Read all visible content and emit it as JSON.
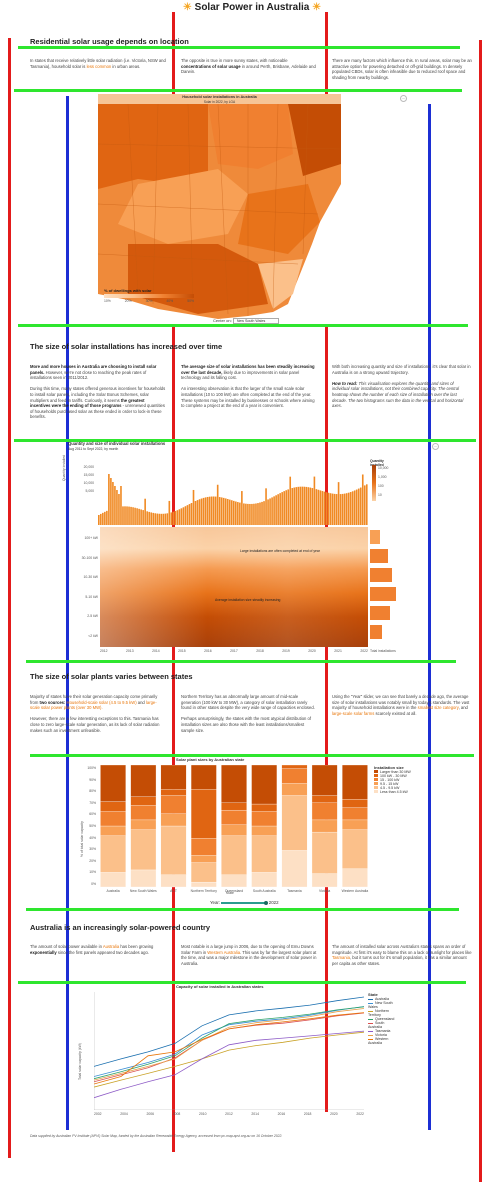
{
  "page": {
    "title": "Solar Power in Australia",
    "footer": "Data supplied by Australian PV Institute (APVI) Solar Map, funded by the Australian Renewable Energy Agency, accessed from pv-map.apvi.org.au on 16 October 2022."
  },
  "s1": {
    "heading": "Residential solar usage depends on location",
    "c1": [
      "In states that receive relatively little solar radiation (i.e. Victoria, NSW and Tasmania), household solar is ",
      "less common",
      " in urban areas."
    ],
    "c2": [
      "The opposite is true in more sunny states, with noticeable ",
      "concentrations of solar usage",
      " in around Perth, Brisbane, Adelaide and Darwin."
    ],
    "c3": "There are many factors which influence this. In rural areas, solar may be an attractive option for powering detached or off-grid buildings. In densely populated CBDs, solar is often infeasible due to reduced roof space and shading from nearby buildings.",
    "map_title": "Household solar installations in Australia",
    "map_sub": "Solar in 2022, by LGA",
    "legend_title": "% of dwellings with solar",
    "legend_ticks": [
      "10%",
      "20%",
      "30%",
      "40%",
      "50%"
    ],
    "center_label": "Center on:",
    "center_value": "New South Wales",
    "colors": [
      "#fde0c5",
      "#fbc08a",
      "#f8a055",
      "#f08030",
      "#e06512",
      "#c44d05"
    ]
  },
  "s2": {
    "heading": "The size of solar installations has increased over time",
    "c1_bold": "More and more houses in Australia are choosing to install solar panels.",
    "c1_a": " However, we're not close to reaching the peak rates of installations seen in 2011/2012.",
    "c1_b": "During this time, many states offered generous incentives for households to install solar panels, including the Solar Bonus Schemes, solar multipliers and feed-in tariffs. Curiously, it seems ",
    "c1_bold2": "the greatest incentives were the ending of those programs",
    "c1_c": " - unrenewed quantities of households purchased solar as these ended in order to lock-in these benefits.",
    "c2_bold": "The average size of solar installations has been steadily increasing over the last decade,",
    "c2_a": " likely due to improvements in solar panel technology and its falling cost.",
    "c2_b": "An interesting observation is that the larger of the small scale solar installations (10 to 100 kW) are often completed at the end of the year. These systems may be installed by businesses or schools where aiming to complete a project at the end of a year is convenient.",
    "c3_a": "With both increasing quantity and size of installations, it's clear that solar in Australia is on a strong upward trajectory.",
    "c3_howto": "How to read:",
    "c3_b": " This visualisation explores the quantity and sizes of individual solar installations, not their combined capacity. The central heatmap shows the number of each size of installation over the last decade. The two histograms sum the data in the vertical and horizontal axes.",
    "chart_title": "Quantity and size of individual solar installations",
    "chart_sub": "Aug 2011 to Sept 2022, by month",
    "bar_ylabel": "Quantity installed",
    "bar_yticks": [
      "20,000",
      "15,000",
      "10,000",
      "5,000"
    ],
    "heat_rows": [
      "100+ kW",
      "30-100 kW",
      "10-30 kW",
      "5-10 kW",
      "2-5 kW",
      "<2 kW"
    ],
    "note1": "Large installations are often completed at end of year",
    "note2": "Average installation size steadily increasing",
    "x_ticks": [
      "2012",
      "2013",
      "2014",
      "2015",
      "2016",
      "2017",
      "2018",
      "2019",
      "2020",
      "2021",
      "2022"
    ],
    "heat_legend_title": "Quantity installed",
    "heat_legend_ticks": [
      "10,000",
      "1,000",
      "100",
      "10"
    ],
    "hist_xlabel": "Total installations"
  },
  "s3": {
    "heading": "The size of solar plants varies between states",
    "c1_a": "Majority of states have their solar generation capacity come primarily from ",
    "c1_bold": "two sources:",
    "c1_or1": " Household-scale solar (4.5 to 9.5 kW)",
    "c1_mid": " and ",
    "c1_or2": "large-scale solar power plants (over 30 MW).",
    "c1_b": "However, there are a few interesting exceptions to this. Tasmania has close to zero large-scale solar generation, as its lack of solar radiation makes such an investment unfeasible.",
    "c2_a": "Northern Territory has an abnormally large amount of mid-scale generation (100 kW to 30 MW), a category of solar installation rarely found in other states despite the very wide range of capacities enclosed.",
    "c2_b": "Perhaps unsurprisingly, the states with the most atypical distribution of installation sizes are also those with the least installations/smallest sample size.",
    "c3_a": "Using the \"Year\" slider, we can see that barely a decade ago, the average size of solar installations was notably small by today's standards. The vast majority of household installations were in the ",
    "c3_or1": "smallest size category",
    "c3_mid": ", and ",
    "c3_or2": "large-scale solar farms",
    "c3_b": " scarcely existed at all.",
    "chart_title": "Solar plant sizes by Australian state",
    "ylabel": "% of total solar capacity",
    "yticks": [
      "100%",
      "90%",
      "80%",
      "70%",
      "60%",
      "50%",
      "40%",
      "30%",
      "20%",
      "10%",
      "0%"
    ],
    "xlabel": "State",
    "legend_title": "Installation size",
    "legend_items": [
      "Larger than 30 MW",
      "100 kW - 30 MW",
      "15 - 100 kW",
      "9.5 - 15 kW",
      "4.5 - 9.5 kW",
      "Less than 4.5 kW"
    ],
    "year_label": "Year:",
    "year_value": "2022"
  },
  "s4": {
    "heading": "Australia is an increasingly solar-powered country",
    "c1_a": "The amount of solar power available in ",
    "c1_or": "Australia",
    "c1_b": " has been growing ",
    "c1_bold": "exponentially",
    "c1_c": " since the first panels appeared two decades ago.",
    "c2_a": "Most notable is a large jump in 2006, due to the opening of Emu Downs Solar Farm in ",
    "c2_or": "Western Australia",
    "c2_b": ". This was by far the largest solar plant at the time, and was a major milestone in the development of solar power in Australia.",
    "c3_a": "The amount of installed solar across Australia's states spans an order of magnitude. At first it's easy to blame this on a lack of sunlight for places like ",
    "c3_or": "Tasmania",
    "c3_b": ", but it turns out for it's small population, it has a similar amount per capita as other states.",
    "chart_title": "Capacity of solar installed in Australian states",
    "ylabel": "Total solar capacity (kW)",
    "xlabel": "Year",
    "legend_title": "State",
    "x_ticks": [
      "2002",
      "2004",
      "2006",
      "2008",
      "2010",
      "2012",
      "2014",
      "2016",
      "2018",
      "2020",
      "2022"
    ]
  },
  "chart_data": [
    {
      "type": "bar",
      "title": "Solar plant sizes by Australian state",
      "categories": [
        "Australia",
        "New South Wales",
        "ACT",
        "Northern Territory",
        "Queensland",
        "South Australia",
        "Tasmania",
        "Victoria",
        "Western Australia"
      ],
      "stacked": true,
      "ylabel": "% of total solar capacity",
      "xlabel": "State",
      "ylim": [
        0,
        100
      ],
      "series": [
        {
          "name": "Less than 4.5 kW",
          "values": [
            12,
            14,
            10,
            4,
            10,
            12,
            30,
            11,
            15
          ],
          "color": "#fde0c5"
        },
        {
          "name": "4.5 - 9.5 kW",
          "values": [
            30,
            33,
            40,
            16,
            32,
            30,
            45,
            34,
            32
          ],
          "color": "#fbc08a"
        },
        {
          "name": "9.5 - 15 kW",
          "values": [
            8,
            8,
            10,
            6,
            9,
            8,
            10,
            10,
            8
          ],
          "color": "#f8a055"
        },
        {
          "name": "15 - 100 kW",
          "values": [
            12,
            12,
            15,
            14,
            12,
            12,
            12,
            14,
            10
          ],
          "color": "#f08030"
        },
        {
          "name": "100 kW - 30 MW",
          "values": [
            8,
            7,
            5,
            40,
            6,
            6,
            3,
            6,
            7
          ],
          "color": "#e06512"
        },
        {
          "name": "Larger than 30 MW",
          "values": [
            30,
            26,
            20,
            20,
            31,
            32,
            0,
            25,
            28
          ],
          "color": "#c44d05"
        }
      ]
    },
    {
      "type": "line",
      "title": "Capacity of solar installed in Australian states",
      "x": [
        2002,
        2004,
        2006,
        2008,
        2010,
        2012,
        2014,
        2016,
        2018,
        2020,
        2022
      ],
      "ylabel": "Total solar capacity (kW)",
      "xlabel": "Year",
      "ylog": true,
      "series": [
        {
          "name": "Australia",
          "values": [
            3000,
            8000,
            20000,
            60000,
            600000,
            2500000,
            4200000,
            6000000,
            9000000,
            16000000,
            26000000
          ],
          "color": "#1a6faf"
        },
        {
          "name": "New South Wales",
          "values": [
            800,
            2000,
            5000,
            15000,
            180000,
            700000,
            1100000,
            1500000,
            2400000,
            4500000,
            7500000
          ],
          "color": "#3b8fd4"
        },
        {
          "name": "Northern Territory",
          "values": [
            200,
            500,
            1200,
            3000,
            8000,
            25000,
            45000,
            70000,
            120000,
            180000,
            260000
          ],
          "color": "#c9a227"
        },
        {
          "name": "Queensland",
          "values": [
            600,
            1500,
            4000,
            12000,
            120000,
            800000,
            1300000,
            1800000,
            2800000,
            4800000,
            7200000
          ],
          "color": "#2ea36b"
        },
        {
          "name": "South Australia",
          "values": [
            400,
            1000,
            2500,
            9000,
            90000,
            400000,
            650000,
            850000,
            1300000,
            2200000,
            3200000
          ],
          "color": "#d94f4f"
        },
        {
          "name": "Tasmania",
          "values": [
            50,
            150,
            400,
            1000,
            8000,
            50000,
            90000,
            120000,
            160000,
            220000,
            300000
          ],
          "color": "#8e5cc7"
        },
        {
          "name": "Victoria",
          "values": [
            500,
            1200,
            3000,
            8000,
            90000,
            500000,
            900000,
            1300000,
            2000000,
            3800000,
            5800000
          ],
          "color": "#e8a04a"
        },
        {
          "name": "Western Australia",
          "values": [
            300,
            800,
            12000,
            20000,
            100000,
            400000,
            700000,
            1000000,
            1500000,
            2400000,
            3400000
          ],
          "color": "#e8760a"
        }
      ]
    }
  ]
}
